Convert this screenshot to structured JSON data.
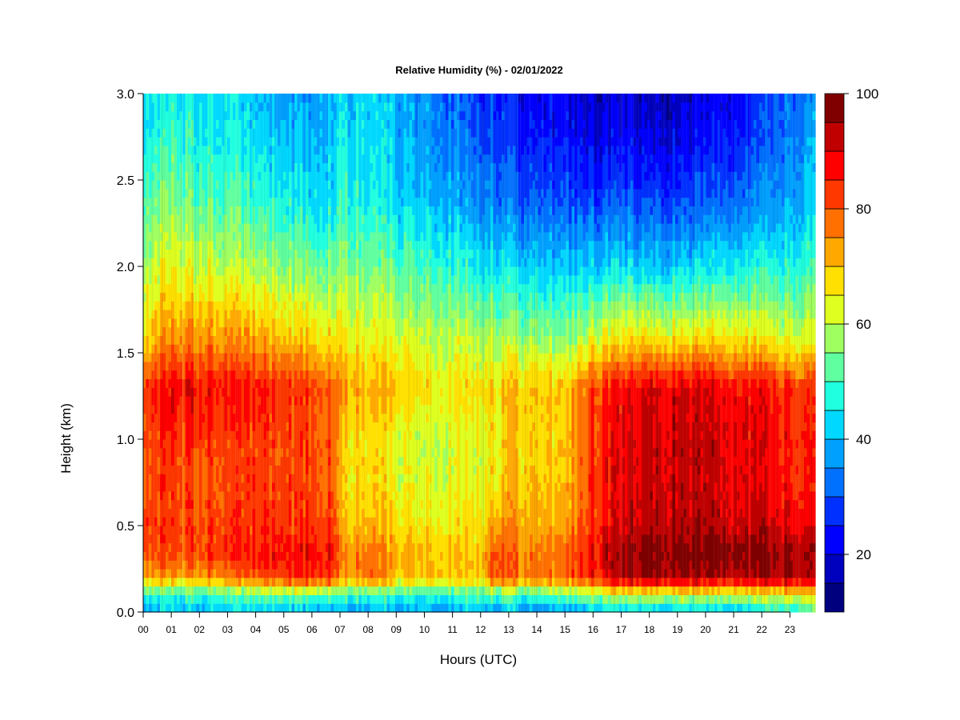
{
  "chart_data": {
    "type": "heatmap",
    "title": "Relative Humidity (%) - 02/01/2022",
    "xlabel": "Hours (UTC)",
    "ylabel": "Height (km)",
    "xlim": [
      0,
      23.9
    ],
    "ylim": [
      0.0,
      3.0
    ],
    "x_ticks": [
      0,
      1,
      2,
      3,
      4,
      5,
      6,
      7,
      8,
      9,
      10,
      11,
      12,
      13,
      14,
      15,
      16,
      17,
      18,
      19,
      20,
      21,
      22,
      23
    ],
    "x_tick_labels": [
      "00",
      "01",
      "02",
      "03",
      "04",
      "05",
      "06",
      "07",
      "08",
      "09",
      "10",
      "11",
      "12",
      "13",
      "14",
      "15",
      "16",
      "17",
      "18",
      "19",
      "20",
      "21",
      "22",
      "23"
    ],
    "y_ticks": [
      0.0,
      0.5,
      1.0,
      1.5,
      2.0,
      2.5,
      3.0
    ],
    "y_tick_labels": [
      "0.0",
      "0.5",
      "1.0",
      "1.5",
      "2.0",
      "2.5",
      "3.0"
    ],
    "grid": false,
    "colorbar": {
      "placement": "right",
      "min": 10,
      "max": 100,
      "step": 5,
      "tick_values": [
        20,
        40,
        60,
        80,
        100
      ],
      "tick_labels": [
        "20",
        "40",
        "60",
        "80",
        "100"
      ],
      "colors": [
        "#00007F",
        "#0000BF",
        "#0000FF",
        "#0030FF",
        "#0070FF",
        "#00A0FF",
        "#00D8FF",
        "#20FFDF",
        "#60FF9F",
        "#A0FF60",
        "#DFFF20",
        "#FFE000",
        "#FFA800",
        "#FF7000",
        "#FF3800",
        "#FF0000",
        "#C00000",
        "#800000"
      ]
    },
    "z_units": "Relative Humidity (%)",
    "heights_km": [
      0.0,
      0.1,
      0.2,
      0.35,
      0.5,
      0.75,
      1.0,
      1.3,
      1.6,
      2.0,
      2.4,
      2.8,
      3.0
    ],
    "hours": [
      0,
      1,
      2,
      3,
      4,
      5,
      6,
      6.8,
      7,
      8,
      9,
      10,
      11,
      12,
      12.6,
      13,
      14,
      15,
      16,
      17,
      18,
      19,
      20,
      21,
      22,
      23,
      23.9
    ],
    "values_rh": [
      [
        38,
        50,
        72,
        84,
        84,
        82,
        82,
        84,
        68,
        60,
        52,
        45,
        44
      ],
      [
        40,
        48,
        72,
        82,
        82,
        82,
        84,
        88,
        74,
        64,
        55,
        48,
        46
      ],
      [
        40,
        50,
        74,
        84,
        82,
        80,
        84,
        88,
        74,
        62,
        52,
        46,
        45
      ],
      [
        40,
        50,
        76,
        84,
        82,
        80,
        82,
        86,
        74,
        60,
        50,
        45,
        44
      ],
      [
        40,
        52,
        80,
        86,
        84,
        82,
        82,
        86,
        72,
        58,
        48,
        42,
        40
      ],
      [
        40,
        54,
        84,
        88,
        84,
        82,
        82,
        84,
        70,
        56,
        46,
        40,
        38
      ],
      [
        40,
        54,
        86,
        88,
        84,
        82,
        82,
        82,
        68,
        55,
        44,
        40,
        38
      ],
      [
        40,
        52,
        84,
        88,
        84,
        80,
        80,
        80,
        66,
        54,
        44,
        42,
        40
      ],
      [
        40,
        50,
        72,
        74,
        70,
        68,
        68,
        74,
        66,
        56,
        48,
        44,
        42
      ],
      [
        38,
        50,
        80,
        78,
        72,
        68,
        68,
        72,
        64,
        54,
        46,
        44,
        42
      ],
      [
        38,
        48,
        70,
        72,
        68,
        64,
        64,
        70,
        62,
        52,
        42,
        40,
        40
      ],
      [
        38,
        48,
        70,
        70,
        66,
        62,
        60,
        66,
        60,
        50,
        40,
        36,
        36
      ],
      [
        38,
        48,
        70,
        70,
        66,
        64,
        62,
        66,
        60,
        48,
        38,
        34,
        32
      ],
      [
        40,
        52,
        70,
        70,
        68,
        64,
        64,
        68,
        60,
        46,
        36,
        30,
        28
      ],
      [
        38,
        50,
        84,
        82,
        74,
        66,
        66,
        68,
        58,
        44,
        34,
        28,
        26
      ],
      [
        40,
        52,
        78,
        78,
        74,
        70,
        70,
        70,
        58,
        44,
        32,
        26,
        24
      ],
      [
        34,
        50,
        78,
        76,
        72,
        70,
        68,
        70,
        56,
        42,
        30,
        24,
        22
      ],
      [
        34,
        52,
        78,
        76,
        72,
        68,
        68,
        68,
        54,
        40,
        28,
        22,
        20
      ],
      [
        40,
        58,
        86,
        88,
        84,
        84,
        84,
        82,
        62,
        42,
        28,
        20,
        18
      ],
      [
        40,
        60,
        92,
        94,
        90,
        88,
        88,
        86,
        64,
        42,
        28,
        20,
        18
      ],
      [
        40,
        62,
        96,
        98,
        94,
        92,
        92,
        90,
        66,
        42,
        28,
        20,
        18
      ],
      [
        40,
        62,
        96,
        98,
        94,
        92,
        92,
        90,
        66,
        42,
        28,
        20,
        18
      ],
      [
        40,
        62,
        94,
        98,
        94,
        92,
        92,
        90,
        66,
        44,
        30,
        22,
        20
      ],
      [
        40,
        62,
        94,
        98,
        92,
        90,
        90,
        88,
        66,
        46,
        32,
        24,
        22
      ],
      [
        44,
        62,
        94,
        96,
        92,
        88,
        88,
        86,
        64,
        46,
        34,
        28,
        26
      ],
      [
        46,
        64,
        96,
        96,
        90,
        86,
        86,
        84,
        62,
        48,
        38,
        34,
        32
      ],
      [
        48,
        64,
        90,
        92,
        86,
        82,
        82,
        80,
        60,
        48,
        40,
        36,
        34
      ]
    ]
  }
}
